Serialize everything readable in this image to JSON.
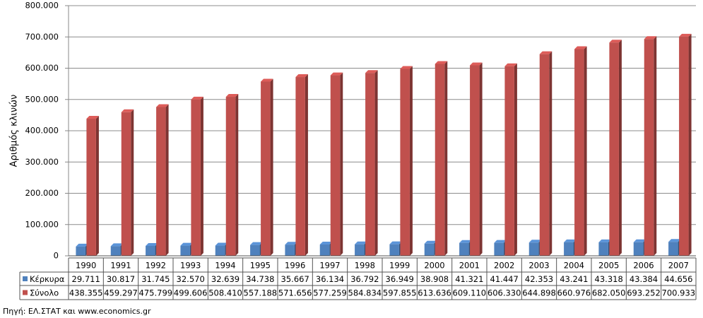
{
  "chart_data": {
    "type": "bar",
    "y_label": "Αριθμός κλινών",
    "source": "Πηγή: ΕΛ.ΣΤΑΤ  και www.economics.gr",
    "categories": [
      "1990",
      "1991",
      "1992",
      "1993",
      "1994",
      "1995",
      "1996",
      "1997",
      "1998",
      "1999",
      "2000",
      "2001",
      "2002",
      "2003",
      "2004",
      "2005",
      "2006",
      "2007"
    ],
    "series": [
      {
        "name": "Κέρκυρα",
        "color": "#4f81bd",
        "values": [
          29711,
          30817,
          31745,
          32570,
          32639,
          34738,
          35667,
          36134,
          36792,
          36949,
          38908,
          41321,
          41447,
          42353,
          43241,
          43318,
          43384,
          44656
        ],
        "value_labels": [
          "29.711",
          "30.817",
          "31.745",
          "32.570",
          "32.639",
          "34.738",
          "35.667",
          "36.134",
          "36.792",
          "36.949",
          "38.908",
          "41.321",
          "41.447",
          "42.353",
          "43.241",
          "43.318",
          "43.384",
          "44.656"
        ]
      },
      {
        "name": "Σύνολο",
        "color": "#c0504d",
        "values": [
          438355,
          459297,
          475799,
          499606,
          508410,
          557188,
          571656,
          577259,
          584834,
          597855,
          613636,
          609110,
          606330,
          644898,
          660976,
          682050,
          693252,
          700933
        ],
        "value_labels": [
          "438.355",
          "459.297",
          "475.799",
          "499.606",
          "508.410",
          "557.188",
          "571.656",
          "577.259",
          "584.834",
          "597.855",
          "613.636",
          "609.110",
          "606.330",
          "644.898",
          "660.976",
          "682.050",
          "693.252",
          "700.933"
        ]
      }
    ],
    "ylim": [
      0,
      800000
    ],
    "yticks": [
      0,
      {
        "value": 100000,
        "label": "100.000"
      },
      {
        "value": 200000,
        "label": "200.000"
      },
      {
        "value": 300000,
        "label": "300.000"
      },
      {
        "value": 400000,
        "label": "400.000"
      },
      {
        "value": 500000,
        "label": "500.000"
      },
      {
        "value": 600000,
        "label": "600.000"
      },
      {
        "value": 700000,
        "label": "700.000"
      },
      {
        "value": 800000,
        "label": "800.000"
      }
    ],
    "grid": true
  }
}
